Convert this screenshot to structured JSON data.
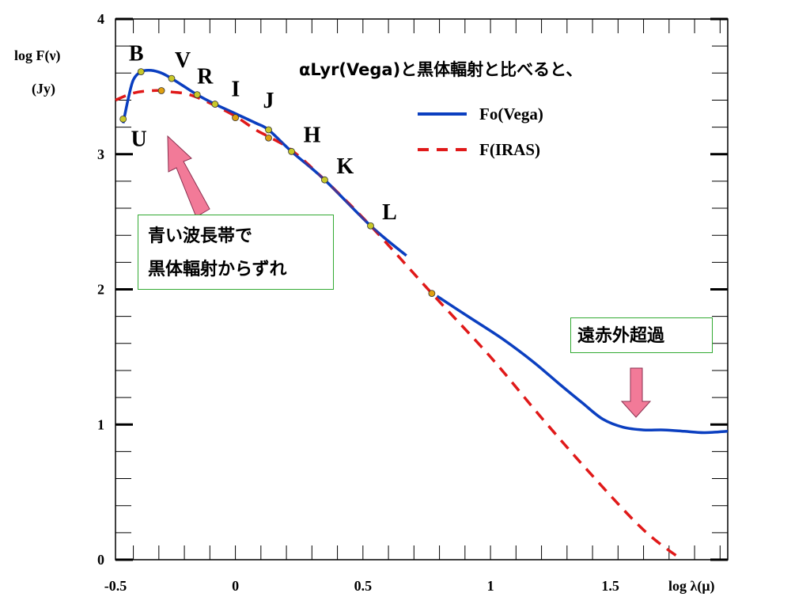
{
  "chart_data": {
    "type": "line",
    "title": "αLyr(Vega)と黒体輻射と比べると、",
    "xlabel": "log λ(μ)",
    "ylabel_line1": "log F(ν)",
    "ylabel_line2": "(Jy)",
    "xlim": [
      -0.47,
      1.93
    ],
    "ylim": [
      0,
      4
    ],
    "x_ticks": [
      "-0.5",
      "0",
      "0.5",
      "1",
      "1.5"
    ],
    "x_tick_values": [
      -0.47,
      0.0,
      0.5,
      1.0,
      1.47
    ],
    "y_ticks": [
      "0",
      "1",
      "2",
      "3",
      "4"
    ],
    "y_tick_values": [
      0,
      1,
      2,
      3,
      4
    ],
    "legend_position": "top-right",
    "series": [
      {
        "name": "Fo(Vega)",
        "color": "#0b3fc0",
        "style": "solid",
        "x": [
          -0.44,
          -0.42,
          -0.4,
          -0.37,
          -0.33,
          -0.29,
          -0.25,
          -0.2,
          -0.15,
          -0.08,
          0.0,
          0.08,
          0.13,
          0.22,
          0.35,
          0.53,
          0.67
        ],
        "y": [
          3.23,
          3.41,
          3.55,
          3.61,
          3.62,
          3.6,
          3.56,
          3.5,
          3.44,
          3.37,
          3.3,
          3.23,
          3.18,
          3.02,
          2.81,
          2.47,
          2.25
        ]
      },
      {
        "name": "Fo(Vega)",
        "color": "#0b3fc0",
        "style": "solid",
        "x": [
          0.79,
          0.92,
          1.05,
          1.17,
          1.27,
          1.36,
          1.44,
          1.52,
          1.6,
          1.68,
          1.76,
          1.84,
          1.93
        ],
        "y": [
          1.95,
          1.79,
          1.63,
          1.46,
          1.3,
          1.16,
          1.04,
          0.98,
          0.96,
          0.96,
          0.95,
          0.94,
          0.95
        ]
      },
      {
        "name": "F(IRAS)",
        "color": "#e01919",
        "style": "dashed",
        "x": [
          -0.47,
          -0.42,
          -0.38,
          -0.33,
          -0.29,
          -0.25,
          -0.2,
          -0.15,
          -0.08,
          0.0,
          0.08,
          0.13,
          0.22,
          0.35,
          0.53,
          0.77,
          1.0,
          1.2,
          1.4,
          1.6,
          1.75
        ],
        "y": [
          3.4,
          3.44,
          3.46,
          3.47,
          3.47,
          3.46,
          3.45,
          3.42,
          3.36,
          3.28,
          3.18,
          3.13,
          3.03,
          2.81,
          2.47,
          1.97,
          1.5,
          1.05,
          0.62,
          0.22,
          0.0
        ]
      }
    ],
    "band_points": [
      {
        "band": "U",
        "x": -0.44,
        "y": 3.26,
        "color": "#c8c82a"
      },
      {
        "band": "B",
        "x": -0.37,
        "y": 3.61,
        "color": "#c8c82a"
      },
      {
        "band": "",
        "x": -0.29,
        "y": 3.47,
        "color": "#e0a010"
      },
      {
        "band": "V",
        "x": -0.25,
        "y": 3.56,
        "color": "#c8c82a"
      },
      {
        "band": "R",
        "x": -0.15,
        "y": 3.44,
        "color": "#c8c82a"
      },
      {
        "band": "I",
        "x": -0.08,
        "y": 3.37,
        "color": "#c8c82a"
      },
      {
        "band": "",
        "x": 0.0,
        "y": 3.27,
        "color": "#e0a010"
      },
      {
        "band": "J",
        "x": 0.13,
        "y": 3.18,
        "color": "#c8c82a"
      },
      {
        "band": "",
        "x": 0.13,
        "y": 3.12,
        "color": "#e0a010"
      },
      {
        "band": "H",
        "x": 0.22,
        "y": 3.02,
        "color": "#c8c82a"
      },
      {
        "band": "K",
        "x": 0.35,
        "y": 2.81,
        "color": "#c8c82a"
      },
      {
        "band": "L",
        "x": 0.53,
        "y": 2.47,
        "color": "#c8c82a"
      },
      {
        "band": "",
        "x": 0.77,
        "y": 1.97,
        "color": "#e0a010"
      }
    ]
  },
  "callouts": {
    "blue_deviation_line1": "青い波長帯で",
    "blue_deviation_line2": "黒体輻射からずれ",
    "far_ir_excess": "遠赤外超過"
  },
  "colors": {
    "arrow_pink": "#f27a98",
    "callout_border": "#33aa33"
  }
}
